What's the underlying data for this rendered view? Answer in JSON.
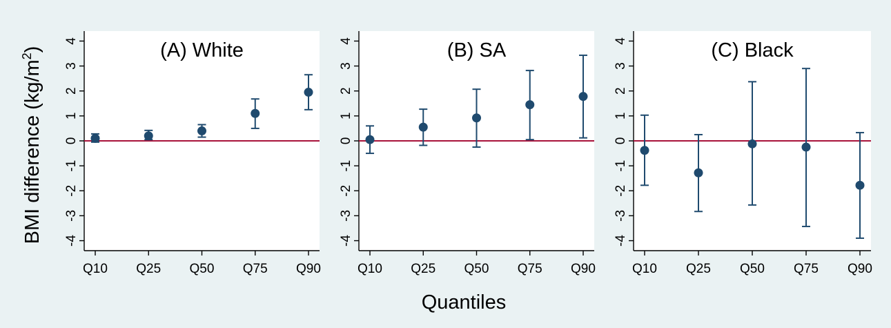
{
  "figure": {
    "xlabel": "Quantiles",
    "ylabel_main": "BMI difference (kg/m",
    "ylabel_sup": "2",
    "ylabel_close": ")"
  },
  "chart_data": [
    {
      "type": "scatter",
      "title": "(A) White",
      "categories": [
        "Q10",
        "Q25",
        "Q50",
        "Q75",
        "Q90"
      ],
      "values": [
        0.1,
        0.2,
        0.4,
        1.1,
        1.95
      ],
      "ci_lower": [
        -0.05,
        0.05,
        0.15,
        0.5,
        1.25
      ],
      "ci_upper": [
        0.28,
        0.42,
        0.65,
        1.68,
        2.65
      ],
      "ylim": [
        -4.4,
        4.4
      ],
      "yticks": [
        -4,
        -3,
        -2,
        -1,
        0,
        1,
        2,
        3,
        4
      ],
      "reference_line": 0,
      "grid": false
    },
    {
      "type": "scatter",
      "title": "(B) SA",
      "categories": [
        "Q10",
        "Q25",
        "Q50",
        "Q75",
        "Q90"
      ],
      "values": [
        0.05,
        0.55,
        0.92,
        1.45,
        1.78
      ],
      "ci_lower": [
        -0.5,
        -0.18,
        -0.25,
        0.05,
        0.12
      ],
      "ci_upper": [
        0.6,
        1.27,
        2.07,
        2.82,
        3.43
      ],
      "ylim": [
        -4.4,
        4.4
      ],
      "yticks": [
        -4,
        -3,
        -2,
        -1,
        0,
        1,
        2,
        3,
        4
      ],
      "reference_line": 0,
      "grid": false
    },
    {
      "type": "scatter",
      "title": "(C) Black",
      "categories": [
        "Q10",
        "Q25",
        "Q50",
        "Q75",
        "Q90"
      ],
      "values": [
        -0.38,
        -1.28,
        -0.12,
        -0.25,
        -1.78
      ],
      "ci_lower": [
        -1.78,
        -2.83,
        -2.57,
        -3.43,
        -3.9
      ],
      "ci_upper": [
        1.03,
        0.25,
        2.37,
        2.9,
        0.33
      ],
      "ylim": [
        -4.4,
        4.4
      ],
      "yticks": [
        -4,
        -3,
        -2,
        -1,
        0,
        1,
        2,
        3,
        4
      ],
      "reference_line": 0,
      "grid": false
    }
  ],
  "colors": {
    "background": "#eaf2f3",
    "plot_area": "#ffffff",
    "marker": "#1f4a6e",
    "reference_line": "#a8123a",
    "axis": "#000000"
  }
}
